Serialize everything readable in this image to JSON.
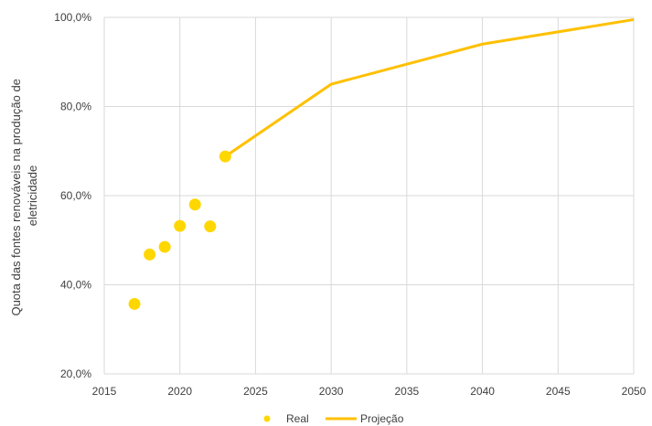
{
  "chart_data": {
    "type": "line",
    "title": "",
    "xlabel": "",
    "ylabel_lines": [
      "Quota das fontes renováveis na produção de",
      "eletricidade"
    ],
    "xlim": [
      2015,
      2050
    ],
    "ylim": [
      20,
      100
    ],
    "x_ticks": [
      "2015",
      "2020",
      "2025",
      "2030",
      "2035",
      "2040",
      "2045",
      "2050"
    ],
    "y_ticks": [
      "20,0%",
      "40,0%",
      "60,0%",
      "80,0%",
      "100,0%"
    ],
    "grid": true,
    "legend_position": "bottom",
    "series": [
      {
        "name": "Real",
        "style": "scatter",
        "color": "#FFD700",
        "x": [
          2017,
          2018,
          2019,
          2020,
          2021,
          2022,
          2023
        ],
        "y": [
          35.7,
          46.8,
          48.5,
          53.2,
          58.0,
          53.1,
          68.8
        ]
      },
      {
        "name": "Projeção",
        "style": "line",
        "color": "#FFC000",
        "x": [
          2023,
          2030,
          2040,
          2050
        ],
        "y": [
          68.8,
          85.0,
          94.0,
          99.5
        ]
      }
    ]
  }
}
